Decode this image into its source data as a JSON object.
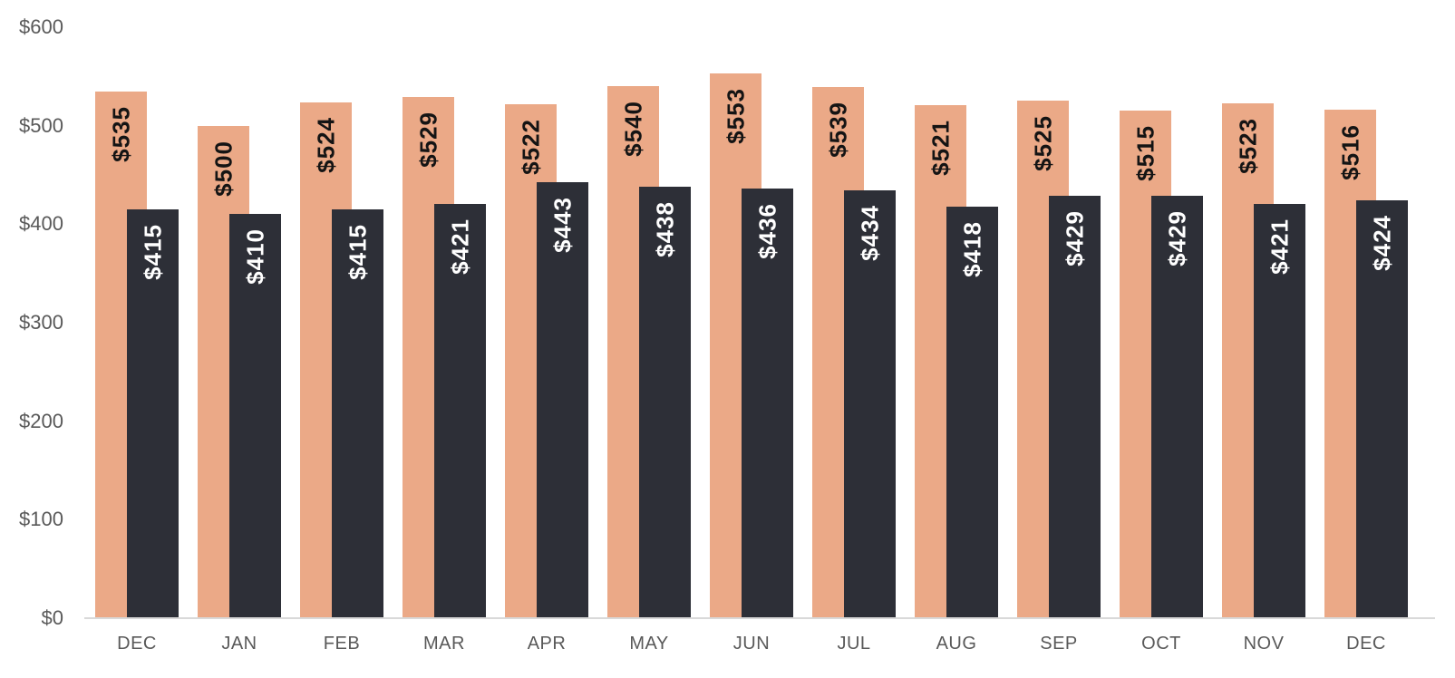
{
  "chart_data": {
    "type": "bar",
    "title": "",
    "categories": [
      "DEC",
      "JAN",
      "FEB",
      "MAR",
      "APR",
      "MAY",
      "JUN",
      "JUL",
      "AUG",
      "SEP",
      "OCT",
      "NOV",
      "DEC"
    ],
    "series": [
      {
        "key": "tan-bars",
        "color": "#eba987",
        "label_text_color": "#141414",
        "values": [
          535,
          500,
          524,
          529,
          522,
          540,
          553,
          539,
          521,
          525,
          515,
          523,
          516
        ]
      },
      {
        "key": "dark-bars",
        "color": "#2d2f37",
        "label_text_color": "#ffffff",
        "values": [
          415,
          410,
          415,
          421,
          443,
          438,
          436,
          434,
          418,
          429,
          429,
          421,
          424
        ]
      }
    ],
    "value_label_prefix": "$",
    "y_axis": {
      "min": 0,
      "max": 600,
      "step": 100,
      "tick_labels": [
        "$0",
        "$100",
        "$200",
        "$300",
        "$400",
        "$500",
        "$600"
      ]
    },
    "x_axis": {
      "tick_labels": [
        "DEC",
        "JAN",
        "FEB",
        "MAR",
        "APR",
        "MAY",
        "JUN",
        "JUL",
        "AUG",
        "SEP",
        "OCT",
        "NOV",
        "DEC"
      ]
    },
    "grid": false,
    "legend": "none",
    "axis_text_color": "#595959",
    "axis_line_color": "#d9d9d9",
    "background": "#ffffff",
    "ylim": [
      0,
      600
    ]
  }
}
